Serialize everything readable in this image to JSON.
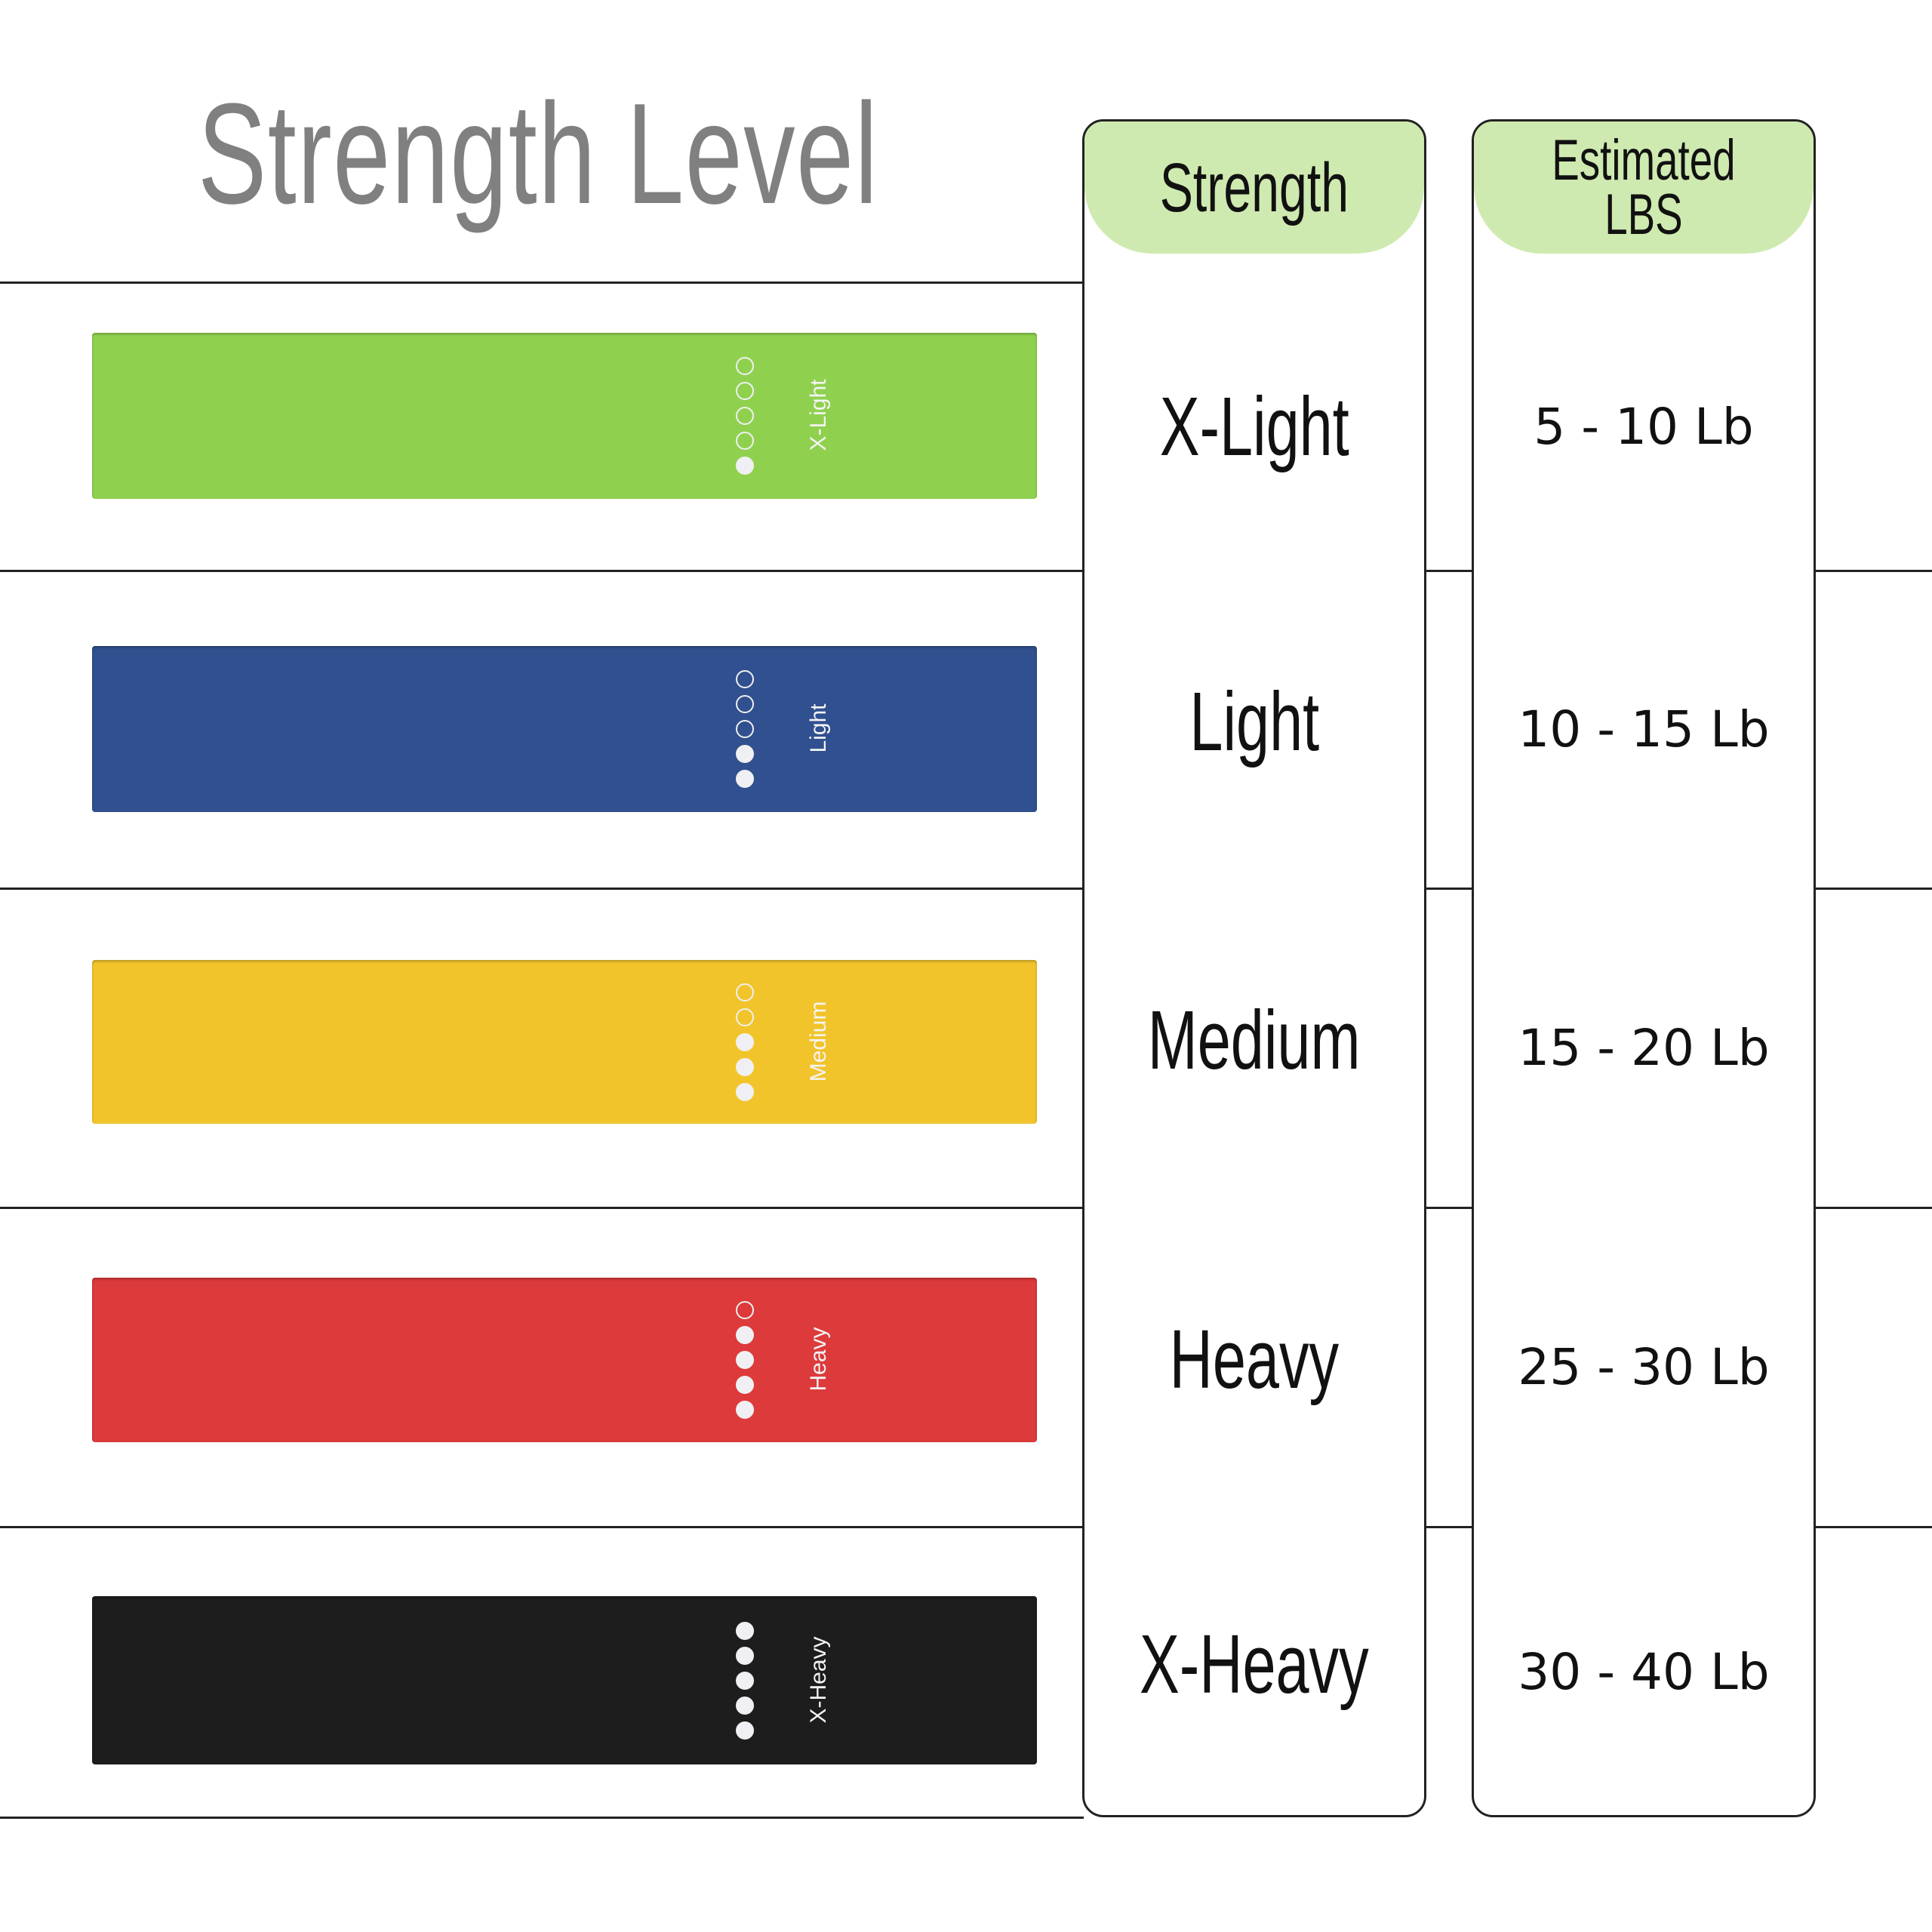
{
  "title": "Strength Level",
  "headers": {
    "strength": "Strength",
    "lbs": "Estimated\nLBS"
  },
  "colors": {
    "header_fill": "#cfeab0",
    "title": "#808080"
  },
  "rows": [
    {
      "strength": "X-Light",
      "lbs": "5 - 10 Lb",
      "band_label": "X-Light",
      "band_color": "#8fd14f",
      "filled_dots": 1,
      "total_dots": 5
    },
    {
      "strength": "Light",
      "lbs": "10 - 15 Lb",
      "band_label": "Light",
      "band_color": "#30508f",
      "filled_dots": 2,
      "total_dots": 5
    },
    {
      "strength": "Medium",
      "lbs": "15 - 20 Lb",
      "band_label": "Medium",
      "band_color": "#f2c42c",
      "filled_dots": 3,
      "total_dots": 5
    },
    {
      "strength": "Heavy",
      "lbs": "25 - 30 Lb",
      "band_label": "Heavy",
      "band_color": "#dc3a3b",
      "filled_dots": 4,
      "total_dots": 5
    },
    {
      "strength": "X-Heavy",
      "lbs": "30 - 40 Lb",
      "band_label": "X-Heavy",
      "band_color": "#1d1d1d",
      "filled_dots": 5,
      "total_dots": 5
    }
  ]
}
